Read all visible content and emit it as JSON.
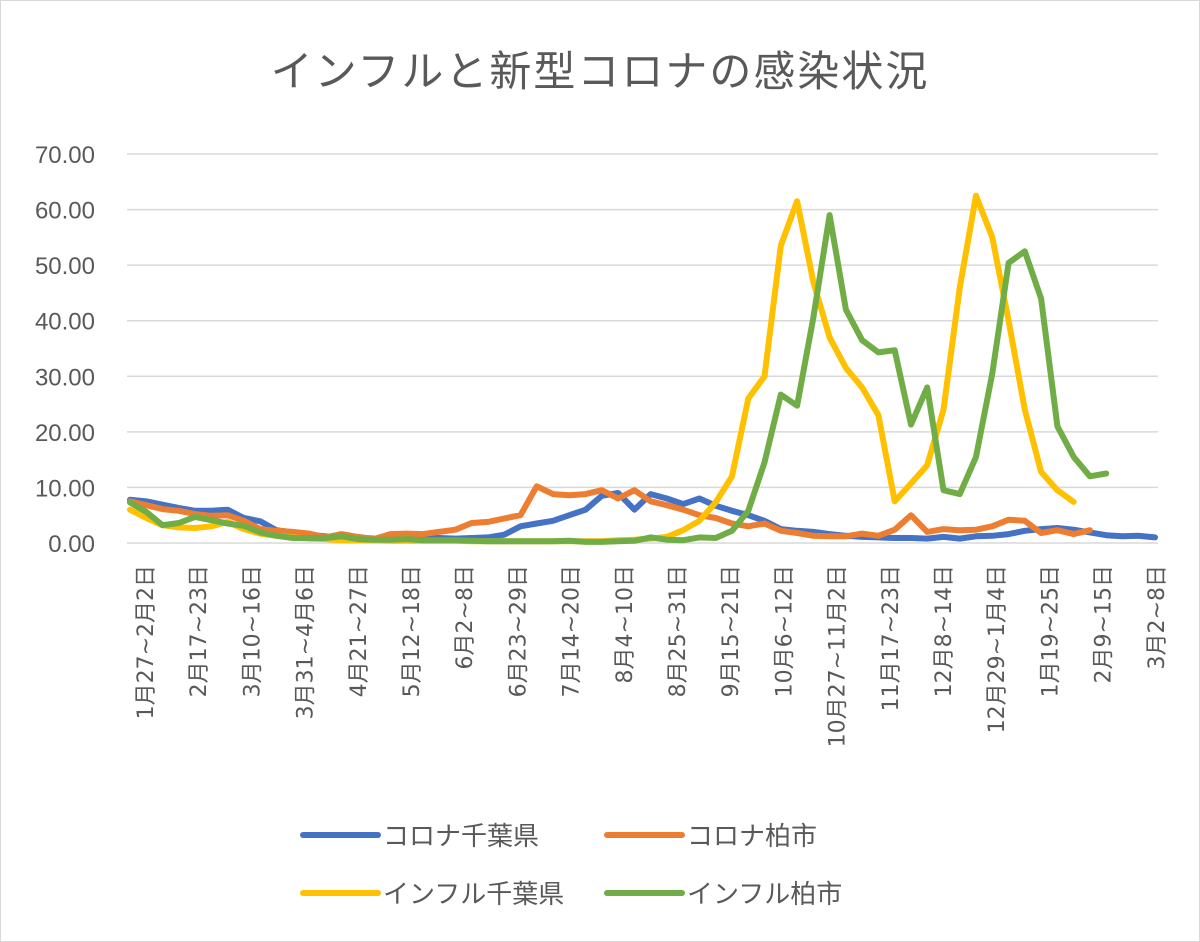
{
  "chart_data": {
    "type": "line",
    "title": "インフルと新型コロナの感染状況",
    "xlabel": "",
    "ylabel": "",
    "ylim": [
      0,
      70
    ],
    "yticks": [
      "0.00",
      "10.00",
      "20.00",
      "30.00",
      "40.00",
      "50.00",
      "60.00",
      "70.00"
    ],
    "grid": true,
    "legend_position": "bottom",
    "x_tick_labels": [
      "1月27~2月2日",
      "2月17~23日",
      "3月10~16日",
      "3月31~4月6日",
      "4月21~27日",
      "5月12~18日",
      "6月2~8日",
      "6月23~29日",
      "7月14~20日",
      "8月4~10日",
      "8月25~31日",
      "9月15~21日",
      "10月6~12日",
      "10月27~11月2日",
      "11月17~23日",
      "12月8~14日",
      "12月29~1月4日",
      "1月19~25日",
      "2月9~15日",
      "3月2~8日"
    ],
    "series": [
      {
        "name": "コロナ千葉県",
        "color": "#4472c4",
        "values": [
          7.8,
          7.5,
          6.9,
          6.3,
          5.8,
          5.8,
          6.0,
          4.5,
          3.9,
          2.3,
          1.9,
          1.5,
          1.2,
          0.8,
          1.0,
          0.8,
          0.6,
          0.9,
          1.0,
          0.9,
          0.8,
          0.9,
          1.0,
          1.5,
          3.0,
          3.5,
          4.0,
          5.0,
          6.0,
          8.5,
          9.0,
          6.0,
          8.8,
          8.0,
          7.0,
          8.0,
          6.7,
          5.8,
          5.0,
          4.0,
          2.5,
          2.2,
          2.0,
          1.6,
          1.3,
          1.1,
          1.0,
          0.9,
          0.9,
          0.8,
          1.1,
          0.8,
          1.2,
          1.3,
          1.6,
          2.2,
          2.5,
          2.7,
          2.4,
          1.9,
          1.4,
          1.2,
          1.3,
          1.0
        ]
      },
      {
        "name": "コロナ柏市",
        "color": "#ed7d31",
        "values": [
          7.5,
          6.8,
          6.1,
          5.8,
          5.2,
          4.9,
          5.0,
          4.0,
          2.5,
          2.2,
          2.0,
          1.7,
          1.0,
          1.6,
          1.1,
          0.7,
          1.6,
          1.7,
          1.6,
          2.0,
          2.4,
          3.6,
          3.8,
          4.4,
          5.0,
          10.2,
          8.8,
          8.6,
          8.8,
          9.5,
          8.0,
          9.5,
          7.5,
          6.8,
          6.0,
          5.0,
          4.5,
          3.5,
          3.0,
          3.5,
          2.2,
          1.8,
          1.3,
          1.2,
          1.2,
          1.7,
          1.3,
          2.4,
          5.0,
          2.0,
          2.5,
          2.3,
          2.4,
          3.0,
          4.2,
          4.0,
          1.8,
          2.3,
          1.6,
          2.3
        ]
      },
      {
        "name": "インフル千葉県",
        "color": "#ffc000",
        "values": [
          6.0,
          4.5,
          3.2,
          2.8,
          2.7,
          3.0,
          3.8,
          2.5,
          1.7,
          1.3,
          1.0,
          0.8,
          0.7,
          0.5,
          0.5,
          0.5,
          0.4,
          0.4,
          0.4,
          0.4,
          0.4,
          0.3,
          0.3,
          0.3,
          0.3,
          0.3,
          0.3,
          0.3,
          0.3,
          0.3,
          0.5,
          0.6,
          0.8,
          1.1,
          2.3,
          4.0,
          7.3,
          12.0,
          26.0,
          30.0,
          53.5,
          61.5,
          47.0,
          37.0,
          31.5,
          28.0,
          23.0,
          7.5,
          10.7,
          14.0,
          24.0,
          46.0,
          62.5,
          55.0,
          40.0,
          24.0,
          12.8,
          9.5,
          7.4
        ]
      },
      {
        "name": "インフル柏市",
        "color": "#70ad47",
        "values": [
          7.3,
          5.6,
          3.2,
          3.6,
          4.7,
          4.1,
          3.5,
          3.1,
          1.9,
          1.3,
          0.9,
          0.9,
          0.9,
          1.2,
          0.7,
          0.6,
          0.6,
          0.7,
          0.5,
          0.5,
          0.5,
          0.4,
          0.3,
          0.3,
          0.3,
          0.3,
          0.3,
          0.4,
          0.2,
          0.2,
          0.3,
          0.4,
          1.0,
          0.6,
          0.5,
          1.0,
          0.9,
          2.2,
          5.8,
          14.5,
          26.7,
          24.7,
          40.5,
          59.0,
          42.0,
          36.5,
          34.3,
          34.7,
          21.3,
          28.0,
          9.5,
          8.8,
          15.5,
          30.5,
          50.4,
          52.5,
          44.0,
          21.0,
          15.5,
          12.0,
          12.5
        ]
      }
    ]
  }
}
